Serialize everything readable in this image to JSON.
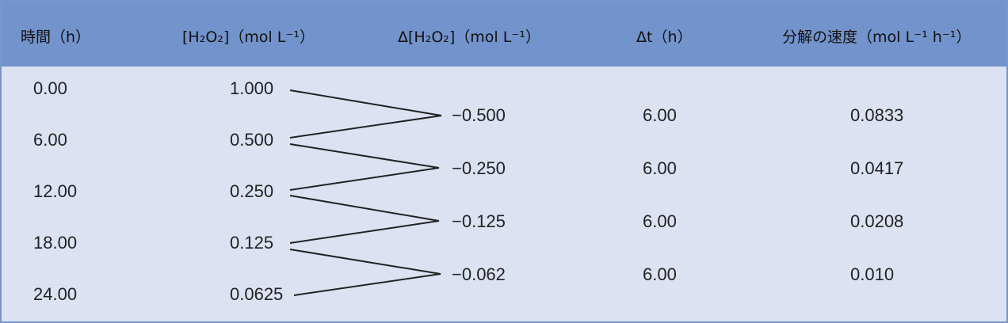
{
  "headers": {
    "time": "時間（h）",
    "conc": "[H₂O₂]（mol L⁻¹）",
    "delta_conc": "Δ[H₂O₂]（mol L⁻¹）",
    "delta_t": "Δt（h）",
    "rate": "分解の速度（mol L⁻¹ h⁻¹）"
  },
  "rows": [
    {
      "time": "0.00",
      "conc": "1.000"
    },
    {
      "time": "6.00",
      "conc": "0.500"
    },
    {
      "time": "12.00",
      "conc": "0.250"
    },
    {
      "time": "18.00",
      "conc": "0.125"
    },
    {
      "time": "24.00",
      "conc": "0.0625"
    }
  ],
  "intervals": [
    {
      "delta_conc": "−0.500",
      "delta_t": "6.00",
      "rate": "0.0833"
    },
    {
      "delta_conc": "−0.250",
      "delta_t": "6.00",
      "rate": "0.0417"
    },
    {
      "delta_conc": "−0.125",
      "delta_t": "6.00",
      "rate": "0.0208"
    },
    {
      "delta_conc": "−0.062",
      "delta_t": "6.00",
      "rate": "0.010"
    }
  ],
  "colors": {
    "header_bg": "#7393cc",
    "body_bg": "#dce2f2",
    "border": "#7896cb",
    "line": "#222222"
  }
}
